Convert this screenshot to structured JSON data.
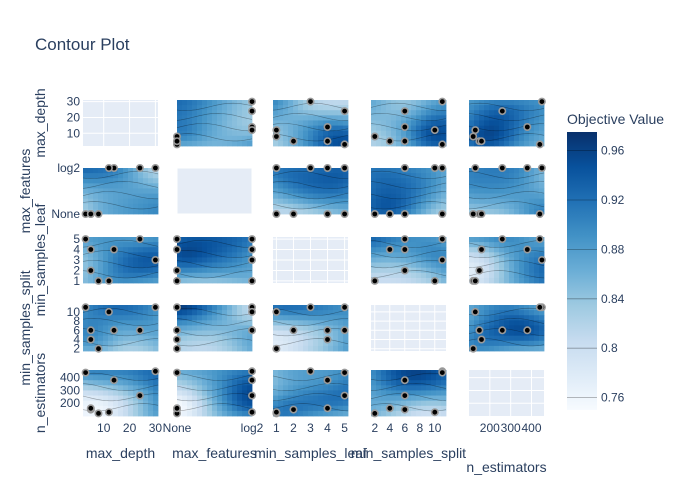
{
  "chart_data": {
    "type": "contour",
    "title": "Contour Plot",
    "params": [
      "max_depth",
      "max_features",
      "min_samples_leaf",
      "min_samples_split",
      "n_estimators"
    ],
    "axes": {
      "max_depth": {
        "ticks": [
          "10",
          "20",
          "30"
        ],
        "x_ticks": [
          "10",
          "20",
          "30"
        ],
        "y_ticks": [
          "10",
          "20",
          "30"
        ]
      },
      "max_features": {
        "ticks": [
          "None",
          "log2"
        ],
        "x_ticks": [
          "None",
          "log2"
        ],
        "y_ticks": [
          "None",
          "log2"
        ]
      },
      "min_samples_leaf": {
        "ticks": [
          "1",
          "2",
          "3",
          "4",
          "5"
        ],
        "x_ticks": [
          "1",
          "2",
          "3",
          "4",
          "5"
        ],
        "y_ticks": [
          "1",
          "2",
          "3",
          "4",
          "5"
        ]
      },
      "min_samples_split": {
        "ticks": [
          "2",
          "4",
          "6",
          "8",
          "10"
        ],
        "x_ticks": [
          "2",
          "4",
          "6",
          "8",
          "10"
        ],
        "y_ticks": [
          "2",
          "4",
          "6",
          "8",
          "10"
        ]
      },
      "n_estimators": {
        "ticks": [
          "200",
          "300",
          "400"
        ],
        "x_ticks": [
          "200",
          "300",
          "400"
        ],
        "y_ticks": [
          "200",
          "300",
          "400"
        ]
      }
    },
    "colorbar": {
      "title": "Objective Value",
      "ticks": [
        "0.96",
        "0.92",
        "0.88",
        "0.84",
        "0.8",
        "0.76"
      ],
      "range": [
        0.75,
        0.975
      ],
      "colorscale": [
        "#f7fbff",
        "#deebf7",
        "#c6dbef",
        "#9ecae1",
        "#6baed6",
        "#4292c6",
        "#2171b5",
        "#08519c",
        "#08306b"
      ]
    },
    "trials": [
      {
        "max_depth": 5,
        "max_features": "None",
        "min_samples_leaf": 2,
        "min_samples_split": 6,
        "n_estimators": 150
      },
      {
        "max_depth": 14,
        "max_features": "log2",
        "min_samples_leaf": 4,
        "min_samples_split": 6,
        "n_estimators": 380
      },
      {
        "max_depth": 30,
        "max_features": "log2",
        "min_samples_leaf": 3,
        "min_samples_split": 11,
        "n_estimators": 450
      },
      {
        "max_depth": 24,
        "max_features": "log2",
        "min_samples_leaf": 5,
        "min_samples_split": 6,
        "n_estimators": 260
      },
      {
        "max_depth": 8,
        "max_features": "None",
        "min_samples_leaf": 1,
        "min_samples_split": 2,
        "n_estimators": 120
      },
      {
        "max_depth": 3,
        "max_features": "None",
        "min_samples_leaf": 5,
        "min_samples_split": 11,
        "n_estimators": 440
      },
      {
        "max_depth": 12,
        "max_features": "log2",
        "min_samples_leaf": 1,
        "min_samples_split": 10,
        "n_estimators": 130
      },
      {
        "max_depth": 5,
        "max_features": "None",
        "min_samples_leaf": 4,
        "min_samples_split": 4,
        "n_estimators": 160
      }
    ]
  }
}
